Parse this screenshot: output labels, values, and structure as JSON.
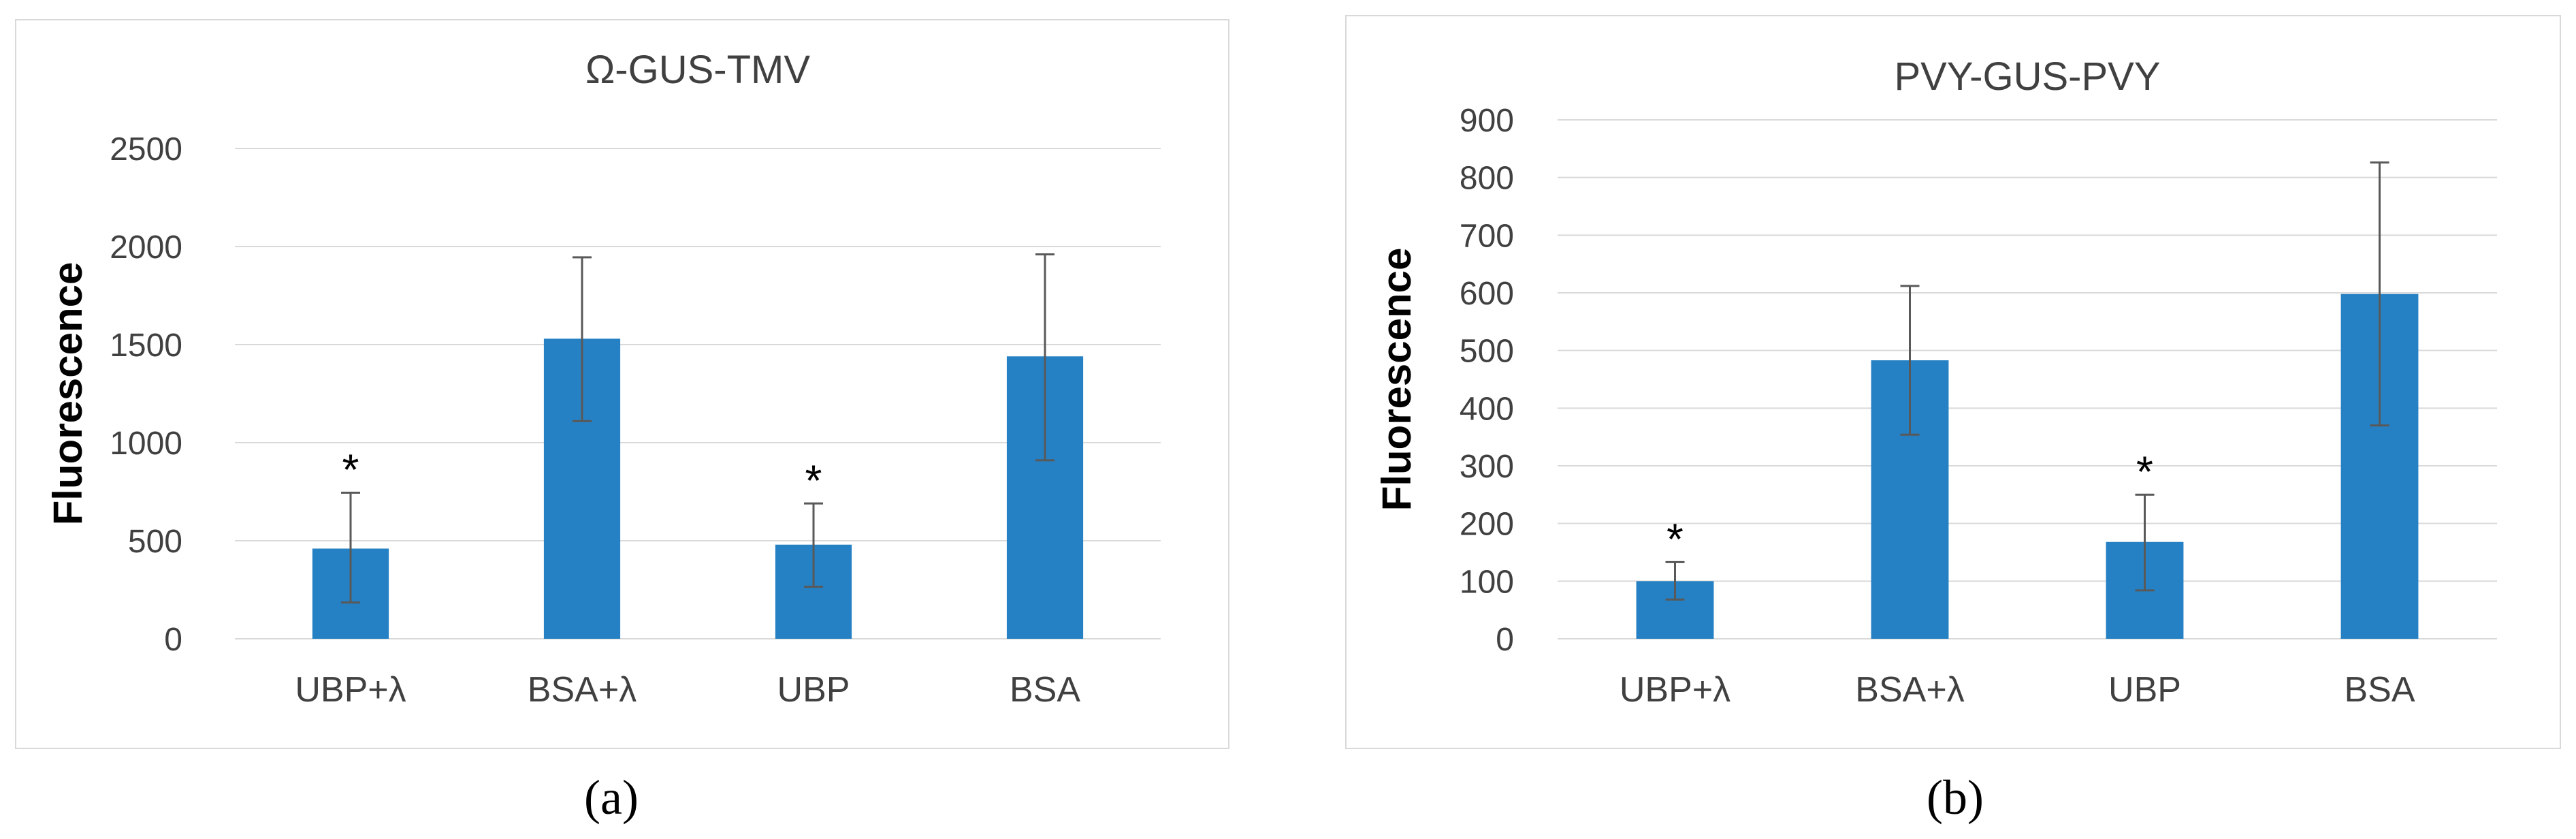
{
  "figure": {
    "captions": [
      "(a)",
      "(b)"
    ]
  },
  "chart_data": [
    {
      "type": "bar",
      "title": "Ω-GUS-TMV",
      "xlabel": "",
      "ylabel": "Fluorescence",
      "categories": [
        "UBP+λ",
        "BSA+λ",
        "UBP",
        "BSA"
      ],
      "values": [
        460,
        1530,
        480,
        1440
      ],
      "error_low": [
        185,
        1110,
        265,
        910
      ],
      "error_high": [
        745,
        1945,
        690,
        1960
      ],
      "annotations": [
        "*",
        "",
        "*",
        ""
      ],
      "ylim": [
        0,
        2500
      ],
      "yticks": [
        0,
        500,
        1000,
        1500,
        2000,
        2500
      ],
      "grid": true,
      "legend": "none",
      "bar_color": "#2581c4"
    },
    {
      "type": "bar",
      "title": "PVY-GUS-PVY",
      "xlabel": "",
      "ylabel": "Fluorescence",
      "categories": [
        "UBP+λ",
        "BSA+λ",
        "UBP",
        "BSA"
      ],
      "values": [
        100,
        483,
        168,
        598
      ],
      "error_low": [
        68,
        354,
        84,
        370
      ],
      "error_high": [
        133,
        612,
        250,
        826
      ],
      "annotations": [
        "*",
        "",
        "*",
        ""
      ],
      "ylim": [
        0,
        900
      ],
      "yticks": [
        0,
        100,
        200,
        300,
        400,
        500,
        600,
        700,
        800,
        900
      ],
      "grid": true,
      "legend": "none",
      "bar_color": "#2581c4"
    }
  ]
}
